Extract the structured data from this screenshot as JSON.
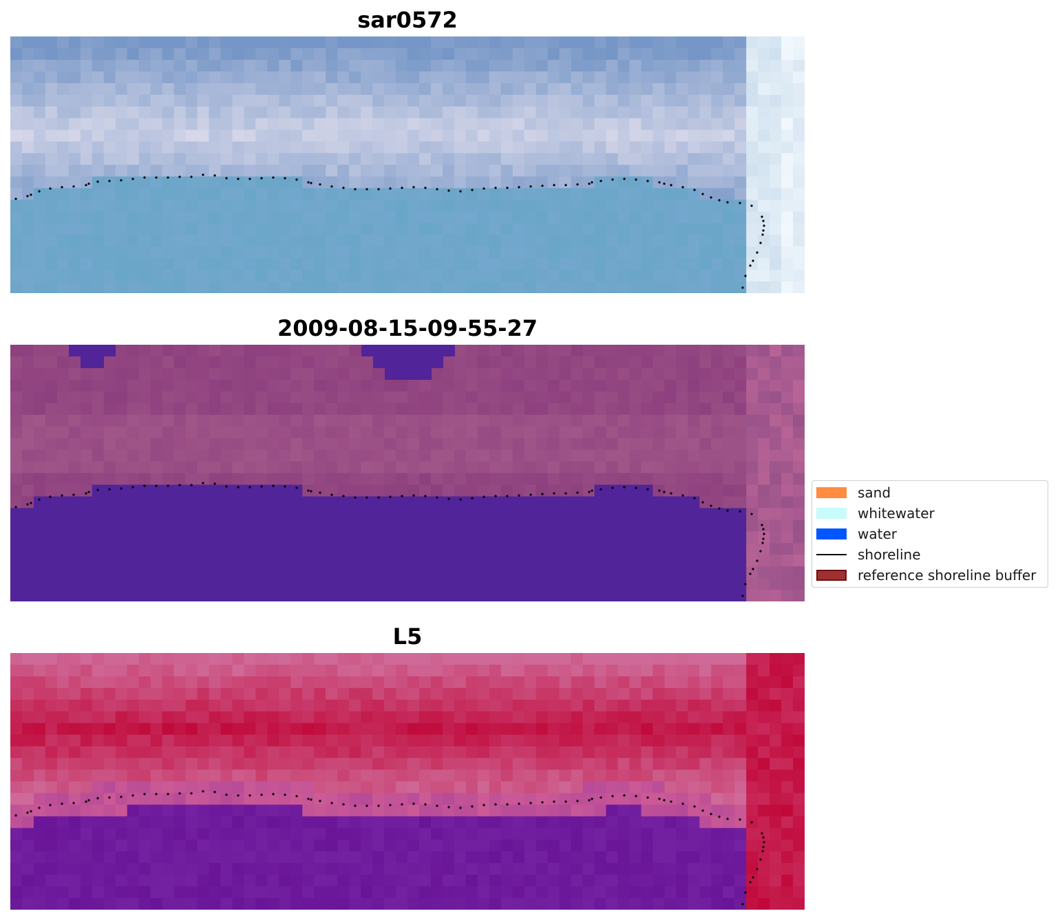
{
  "panels": [
    {
      "title": "sar0572",
      "style": "rgb"
    },
    {
      "title": "2009-08-15-09-55-27",
      "style": "classified"
    },
    {
      "title": "L5",
      "style": "index"
    }
  ],
  "legend": {
    "items": [
      {
        "label": "sand",
        "color": "#ff8c3f",
        "kind": "patch"
      },
      {
        "label": "whitewater",
        "color": "#c8fbfb",
        "kind": "patch"
      },
      {
        "label": "water",
        "color": "#0057ff",
        "kind": "patch"
      },
      {
        "label": "shoreline",
        "color": "#000000",
        "kind": "line"
      },
      {
        "label": "reference shoreline buffer",
        "color": "#a03030",
        "kind": "patch-outline"
      }
    ]
  },
  "colors": {
    "rgb_water": "#6aa6c8",
    "rgb_land": "#a9c1df",
    "classified_water": "#52249a",
    "classified_land": "#8d407e",
    "index_high": "#c0093a",
    "index_low": "#6a1598"
  }
}
